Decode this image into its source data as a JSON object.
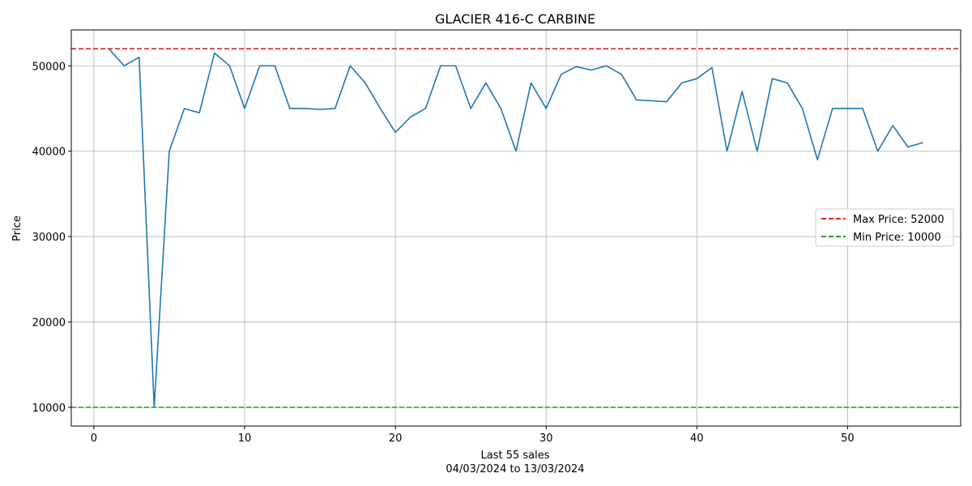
{
  "chart_data": {
    "type": "line",
    "title": "GLACIER 416-C CARBINE",
    "xlabel": "Last 55 sales",
    "xlabel_sub": "04/03/2024 to 13/03/2024",
    "ylabel": "Price",
    "xlim": [
      -1.5,
      57.5
    ],
    "ylim": [
      7800,
      54200
    ],
    "grid": true,
    "x_ticks": [
      0,
      10,
      20,
      30,
      40,
      50
    ],
    "y_ticks": [
      10000,
      20000,
      30000,
      40000,
      50000
    ],
    "series": [
      {
        "color": "#1f77b4",
        "x": [
          1,
          2,
          3,
          4,
          5,
          6,
          7,
          8,
          9,
          10,
          11,
          12,
          13,
          14,
          15,
          16,
          17,
          18,
          19,
          20,
          21,
          22,
          23,
          24,
          25,
          26,
          27,
          28,
          29,
          30,
          31,
          32,
          33,
          34,
          35,
          36,
          37,
          38,
          39,
          40,
          41,
          42,
          43,
          44,
          45,
          46,
          47,
          48,
          49,
          50,
          51,
          52,
          53,
          54,
          55
        ],
        "values": [
          52000,
          50000,
          51000,
          10000,
          40000,
          45000,
          44500,
          51500,
          50000,
          45000,
          50000,
          50000,
          45000,
          45000,
          44900,
          45000,
          50000,
          48000,
          45000,
          42200,
          44000,
          45000,
          50000,
          50000,
          45000,
          48000,
          45000,
          40000,
          48000,
          45000,
          49000,
          49900,
          49500,
          50000,
          49000,
          46000,
          45900,
          45800,
          48000,
          48500,
          49800,
          40000,
          47000,
          40000,
          48500,
          48000,
          45000,
          39000,
          45000,
          45000,
          45000,
          40000,
          43000,
          40500,
          41000
        ]
      }
    ],
    "reference_lines": [
      {
        "name": "Max Price: 52000",
        "value": 52000,
        "color": "#d62728"
      },
      {
        "name": "Min Price: 10000",
        "value": 10000,
        "color": "#2ca02c"
      }
    ],
    "legend_position": "center-right"
  }
}
